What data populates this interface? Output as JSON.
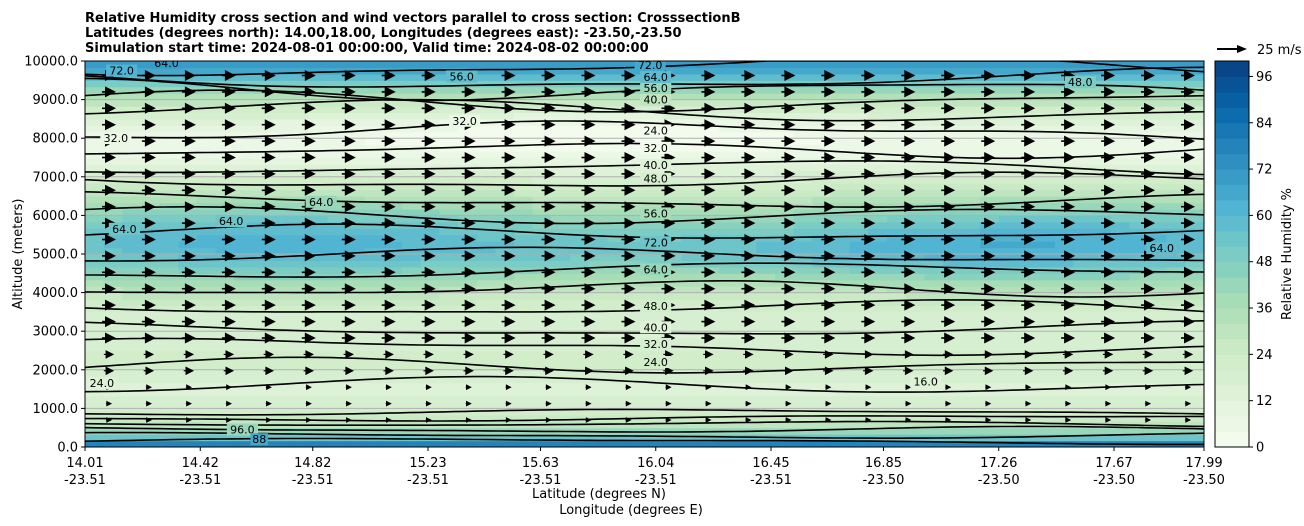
{
  "chart_data": {
    "type": "contourf",
    "title_lines": [
      "Relative Humidity cross section and wind vectors parallel to cross section: CrosssectionB",
      "Latitudes (degrees north): 14.00,18.00, Longitudes (degrees east): -23.50,-23.50",
      "Simulation start time: 2024-08-01 00:00:00, Valid time: 2024-08-02 00:00:00"
    ],
    "ylabel": "Altitude (meters)",
    "xlabel_lat": "Latitude (degrees N)",
    "xlabel_lon": "Longitude (degrees E)",
    "ylim": [
      0,
      10000
    ],
    "xlim": [
      14.01,
      17.99
    ],
    "y_ticks": [
      {
        "value": 0,
        "label": "0.0"
      },
      {
        "value": 1000,
        "label": "1000.0"
      },
      {
        "value": 2000,
        "label": "2000.0"
      },
      {
        "value": 3000,
        "label": "3000.0"
      },
      {
        "value": 4000,
        "label": "4000.0"
      },
      {
        "value": 5000,
        "label": "5000.0"
      },
      {
        "value": 6000,
        "label": "6000.0"
      },
      {
        "value": 7000,
        "label": "7000.0"
      },
      {
        "value": 8000,
        "label": "8000.0"
      },
      {
        "value": 9000,
        "label": "9000.0"
      },
      {
        "value": 10000,
        "label": "10000.0"
      }
    ],
    "x_ticks": [
      {
        "value": 14.01,
        "lat": "14.01",
        "lon": "-23.51"
      },
      {
        "value": 14.42,
        "lat": "14.42",
        "lon": "-23.51"
      },
      {
        "value": 14.82,
        "lat": "14.82",
        "lon": "-23.51"
      },
      {
        "value": 15.23,
        "lat": "15.23",
        "lon": "-23.51"
      },
      {
        "value": 15.63,
        "lat": "15.63",
        "lon": "-23.51"
      },
      {
        "value": 16.04,
        "lat": "16.04",
        "lon": "-23.51"
      },
      {
        "value": 16.45,
        "lat": "16.45",
        "lon": "-23.51"
      },
      {
        "value": 16.85,
        "lat": "16.85",
        "lon": "-23.50"
      },
      {
        "value": 17.26,
        "lat": "17.26",
        "lon": "-23.50"
      },
      {
        "value": 17.67,
        "lat": "17.67",
        "lon": "-23.50"
      },
      {
        "value": 17.99,
        "lat": "17.99",
        "lon": "-23.50"
      }
    ],
    "colorbar": {
      "label": "Relative Humidity %",
      "range": [
        0,
        100
      ],
      "ticks": [
        "0",
        "12",
        "24",
        "36",
        "48",
        "60",
        "72",
        "84",
        "96"
      ],
      "levels": [
        0,
        4,
        8,
        12,
        16,
        20,
        24,
        28,
        32,
        36,
        40,
        44,
        48,
        52,
        56,
        60,
        64,
        68,
        72,
        76,
        80,
        84,
        88,
        92,
        96,
        100
      ],
      "colormap": "GnBu"
    },
    "quiver_key": "25 m/s",
    "contour_levels": [
      16,
      24,
      32,
      40,
      48,
      56,
      64,
      72,
      80,
      88,
      96
    ],
    "contour_labels": [
      {
        "text": "16.0",
        "x": 17.0,
        "y": 1650
      },
      {
        "text": "24.0",
        "x": 16.04,
        "y": 2150
      },
      {
        "text": "32.0",
        "x": 16.04,
        "y": 2620
      },
      {
        "text": "40.0",
        "x": 16.04,
        "y": 3050
      },
      {
        "text": "48.0",
        "x": 16.04,
        "y": 3600
      },
      {
        "text": "64.0",
        "x": 16.04,
        "y": 4550
      },
      {
        "text": "72.0",
        "x": 16.04,
        "y": 5250
      },
      {
        "text": "56.0",
        "x": 16.04,
        "y": 6000
      },
      {
        "text": "48.0",
        "x": 16.04,
        "y": 6900
      },
      {
        "text": "40.0",
        "x": 16.04,
        "y": 7250
      },
      {
        "text": "32.0",
        "x": 16.04,
        "y": 7700
      },
      {
        "text": "24.0",
        "x": 16.04,
        "y": 8150
      },
      {
        "text": "40.0",
        "x": 16.04,
        "y": 8950
      },
      {
        "text": "56.0",
        "x": 16.04,
        "y": 9250
      },
      {
        "text": "64.0",
        "x": 16.04,
        "y": 9530
      },
      {
        "text": "72.0",
        "x": 16.02,
        "y": 9850
      },
      {
        "text": "56.0",
        "x": 15.35,
        "y": 9550
      },
      {
        "text": "32.0",
        "x": 15.36,
        "y": 8400
      },
      {
        "text": "32.0",
        "x": 14.12,
        "y": 7950
      },
      {
        "text": "72.0",
        "x": 14.14,
        "y": 9700
      },
      {
        "text": "64.0",
        "x": 14.3,
        "y": 9900
      },
      {
        "text": "64.0",
        "x": 14.85,
        "y": 6300
      },
      {
        "text": "64.0",
        "x": 14.53,
        "y": 5800
      },
      {
        "text": "64.0",
        "x": 14.15,
        "y": 5600
      },
      {
        "text": "64.0",
        "x": 17.84,
        "y": 5100
      },
      {
        "text": "48.0",
        "x": 17.55,
        "y": 9400
      },
      {
        "text": "24.0",
        "x": 14.07,
        "y": 1600
      },
      {
        "text": "96.0",
        "x": 14.57,
        "y": 400
      },
      {
        "text": "88",
        "x": 14.63,
        "y": 150
      }
    ]
  }
}
